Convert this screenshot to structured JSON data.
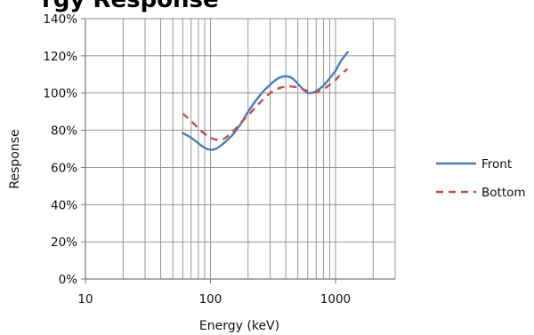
{
  "chart_data": {
    "type": "line",
    "title": "rgy Response",
    "xlabel": "Energy (keV)",
    "ylabel": "Response",
    "xscale": "log",
    "xlim": [
      10,
      3000
    ],
    "ylim": [
      0,
      140
    ],
    "x_ticks": [
      10,
      100,
      1000
    ],
    "x_tick_labels": [
      "10",
      "100",
      "1000"
    ],
    "y_ticks": [
      0,
      20,
      40,
      60,
      80,
      100,
      120,
      140
    ],
    "y_tick_labels": [
      "0%",
      "20%",
      "40%",
      "60%",
      "80%",
      "100%",
      "120%",
      "140%"
    ],
    "grid": true,
    "legend_position": "right",
    "series": [
      {
        "name": "Front",
        "color": "#4a7ebb",
        "style": "solid",
        "points": [
          [
            60,
            78.5
          ],
          [
            70,
            76
          ],
          [
            80,
            73
          ],
          [
            90,
            70.5
          ],
          [
            100,
            69.5
          ],
          [
            110,
            70
          ],
          [
            125,
            72.5
          ],
          [
            150,
            77.5
          ],
          [
            175,
            83.5
          ],
          [
            200,
            90
          ],
          [
            250,
            99
          ],
          [
            300,
            104.5
          ],
          [
            350,
            108
          ],
          [
            400,
            109
          ],
          [
            450,
            108
          ],
          [
            500,
            105
          ],
          [
            550,
            102
          ],
          [
            600,
            100
          ],
          [
            650,
            100.2
          ],
          [
            700,
            101
          ],
          [
            800,
            104
          ],
          [
            900,
            108
          ],
          [
            1000,
            112
          ],
          [
            1100,
            117
          ],
          [
            1250,
            122
          ]
        ]
      },
      {
        "name": "Bottom",
        "color": "#c0504d",
        "style": "dashed",
        "points": [
          [
            60,
            89
          ],
          [
            70,
            85
          ],
          [
            80,
            81
          ],
          [
            90,
            78
          ],
          [
            100,
            76
          ],
          [
            110,
            75
          ],
          [
            125,
            75
          ],
          [
            150,
            79
          ],
          [
            175,
            84
          ],
          [
            200,
            88
          ],
          [
            250,
            95
          ],
          [
            300,
            100
          ],
          [
            350,
            102.5
          ],
          [
            400,
            103.5
          ],
          [
            450,
            103.5
          ],
          [
            500,
            103
          ],
          [
            550,
            102
          ],
          [
            600,
            101
          ],
          [
            650,
            100.5
          ],
          [
            700,
            100.5
          ],
          [
            800,
            102
          ],
          [
            900,
            104.5
          ],
          [
            1000,
            107
          ],
          [
            1100,
            110
          ],
          [
            1250,
            113
          ]
        ]
      }
    ]
  }
}
